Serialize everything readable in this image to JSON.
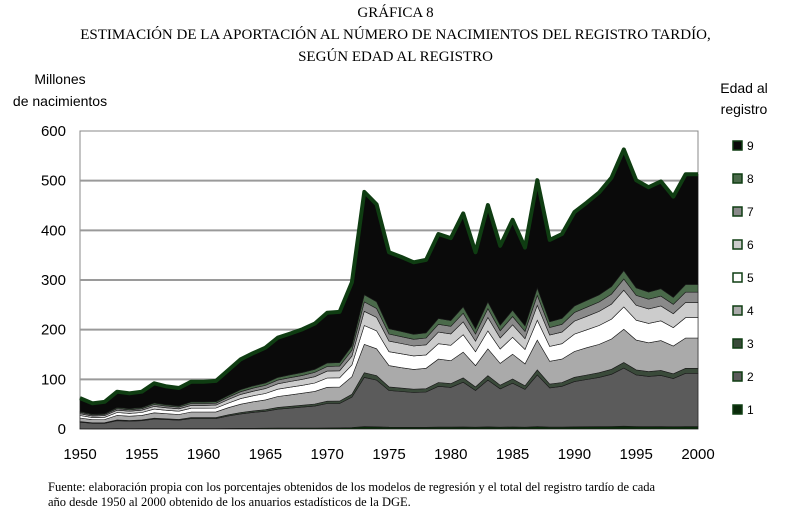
{
  "chart_data": {
    "type": "area",
    "stacked": true,
    "title": "GRÁFICA 8",
    "subtitle_line1": "ESTIMACIÓN DE LA APORTACIÓN AL NÚMERO DE NACIMIENTOS DEL REGISTRO TARDÍO,",
    "subtitle_line2": "SEGÚN EDAD AL REGISTRO",
    "ylabel_line1": "Millones",
    "ylabel_line2": "de nacimientos",
    "legend_title_line1": "Edad al",
    "legend_title_line2": "registro",
    "legend_placement": "right",
    "grid": true,
    "ylim": [
      0,
      600
    ],
    "xlim": [
      1950,
      2000
    ],
    "yticks": [
      "0",
      "100",
      "200",
      "300",
      "400",
      "500",
      "600"
    ],
    "xticks": [
      "1950",
      "1955",
      "1960",
      "1965",
      "1970",
      "1975",
      "1980",
      "1985",
      "1990",
      "1995",
      "2000"
    ],
    "x": [
      1950,
      1951,
      1952,
      1953,
      1954,
      1955,
      1956,
      1957,
      1958,
      1959,
      1960,
      1961,
      1962,
      1963,
      1964,
      1965,
      1966,
      1967,
      1968,
      1969,
      1970,
      1971,
      1972,
      1973,
      1974,
      1975,
      1976,
      1977,
      1978,
      1979,
      1980,
      1981,
      1982,
      1983,
      1984,
      1985,
      1986,
      1987,
      1988,
      1989,
      1990,
      1991,
      1992,
      1993,
      1994,
      1995,
      1996,
      1997,
      1998,
      1999,
      2000
    ],
    "totals": [
      62,
      52,
      55,
      75,
      72,
      75,
      92,
      85,
      82,
      95,
      95,
      97,
      118,
      140,
      152,
      163,
      183,
      192,
      200,
      212,
      233,
      235,
      295,
      477,
      452,
      355,
      345,
      335,
      340,
      392,
      383,
      432,
      355,
      450,
      368,
      420,
      365,
      500,
      380,
      392,
      435,
      455,
      475,
      505,
      562,
      500,
      487,
      497,
      468,
      512,
      512
    ],
    "series": [
      {
        "name": "1",
        "color": "#0a2a0a",
        "values": [
          0.6,
          0.5,
          0.5,
          0.8,
          0.7,
          0.8,
          0.9,
          0.9,
          0.8,
          1.0,
          1.0,
          1.0,
          1.2,
          1.4,
          1.5,
          1.6,
          1.8,
          1.9,
          2.0,
          2.1,
          2.3,
          2.4,
          3.0,
          4.8,
          4.5,
          3.6,
          3.5,
          3.4,
          3.4,
          3.9,
          3.8,
          4.3,
          3.6,
          4.5,
          3.7,
          4.2,
          3.7,
          5.0,
          3.8,
          3.9,
          4.4,
          4.6,
          4.8,
          5.1,
          5.6,
          5.0,
          4.9,
          5.0,
          4.7,
          5.1,
          5.1
        ]
      },
      {
        "name": "2",
        "color": "#5b5b5b",
        "values": [
          13,
          11,
          11,
          16,
          15,
          16,
          19,
          18,
          17,
          20,
          20,
          20,
          25,
          29,
          32,
          34,
          38,
          40,
          42,
          44,
          49,
          49,
          61,
          99,
          94,
          74,
          72,
          70,
          71,
          82,
          80,
          90,
          74,
          94,
          77,
          88,
          76,
          104,
          79,
          82,
          91,
          95,
          99,
          105,
          117,
          104,
          101,
          103,
          97,
          107,
          107
        ]
      },
      {
        "name": "3",
        "color": "#3a4a3a",
        "values": [
          1.2,
          1.0,
          1.1,
          1.5,
          1.4,
          1.5,
          1.8,
          1.7,
          1.6,
          1.9,
          1.9,
          1.9,
          2.4,
          2.8,
          3.0,
          3.3,
          3.7,
          3.8,
          4.0,
          4.2,
          4.7,
          4.7,
          5.9,
          9.5,
          9.0,
          7.1,
          6.9,
          6.7,
          6.8,
          7.8,
          7.7,
          8.6,
          7.1,
          9.0,
          7.4,
          8.4,
          7.3,
          10.0,
          7.6,
          7.8,
          8.7,
          9.1,
          9.5,
          10.1,
          11.2,
          10.0,
          9.7,
          9.9,
          9.4,
          10.2,
          10.2
        ]
      },
      {
        "name": "4",
        "color": "#aaaaaa",
        "values": [
          7.4,
          6.2,
          6.6,
          9.0,
          8.6,
          9.0,
          11.0,
          10.2,
          9.8,
          11.4,
          11.4,
          11.6,
          14.2,
          16.8,
          18.2,
          19.6,
          22.0,
          23.0,
          24.0,
          25.4,
          28.0,
          28.2,
          35.4,
          57,
          54,
          43,
          41,
          40,
          41,
          47,
          46,
          52,
          43,
          54,
          44,
          50,
          44,
          60,
          46,
          47,
          52,
          55,
          57,
          61,
          67,
          60,
          58,
          60,
          56,
          61,
          61
        ]
      },
      {
        "name": "5",
        "color": "#ffffff",
        "values": [
          5.0,
          4.2,
          4.4,
          6.0,
          5.8,
          6.0,
          7.4,
          6.8,
          6.6,
          7.6,
          7.6,
          7.8,
          9.4,
          11.2,
          12.2,
          13.0,
          14.6,
          15.4,
          16.0,
          17.0,
          18.6,
          18.8,
          23.6,
          38,
          36,
          28,
          28,
          27,
          27,
          31,
          31,
          35,
          28,
          36,
          29,
          34,
          29,
          40,
          30,
          31,
          35,
          36,
          38,
          40,
          45,
          40,
          39,
          40,
          37,
          41,
          41
        ]
      },
      {
        "name": "6",
        "color": "#cccccc",
        "values": [
          3.7,
          3.1,
          3.3,
          4.5,
          4.3,
          4.5,
          5.5,
          5.1,
          4.9,
          5.7,
          5.7,
          5.8,
          7.1,
          8.4,
          9.1,
          9.8,
          11.0,
          11.5,
          12.0,
          12.7,
          14.0,
          14.1,
          17.7,
          28.6,
          27.1,
          21.3,
          20.7,
          20.1,
          20.4,
          23.5,
          23.0,
          25.9,
          21.3,
          27.0,
          22.1,
          25.2,
          21.9,
          30.0,
          22.8,
          23.5,
          26.1,
          27.3,
          28.5,
          30.3,
          33.7,
          30.0,
          29.2,
          29.8,
          28.1,
          30.7,
          30.7
        ]
      },
      {
        "name": "7",
        "color": "#8a8a8a",
        "values": [
          2.5,
          2.1,
          2.2,
          3.0,
          2.9,
          3.0,
          3.7,
          3.4,
          3.3,
          3.8,
          3.8,
          3.9,
          4.7,
          5.6,
          6.1,
          6.5,
          7.3,
          7.7,
          8.0,
          8.5,
          9.3,
          9.4,
          11.8,
          19.1,
          18.1,
          14.2,
          13.8,
          13.4,
          13.6,
          15.7,
          15.3,
          17.3,
          14.2,
          18.0,
          14.7,
          16.8,
          14.6,
          20.0,
          15.2,
          15.7,
          17.4,
          18.2,
          19.0,
          20.2,
          22.5,
          20.0,
          19.5,
          19.9,
          18.7,
          20.5,
          20.5
        ]
      },
      {
        "name": "8",
        "color": "#4a6a4a",
        "values": [
          1.9,
          1.6,
          1.7,
          2.3,
          2.2,
          2.3,
          2.8,
          2.6,
          2.5,
          2.9,
          2.9,
          2.9,
          3.5,
          4.2,
          4.6,
          4.9,
          5.5,
          5.8,
          6.0,
          6.4,
          7.0,
          7.1,
          8.9,
          14.3,
          13.6,
          10.7,
          10.4,
          10.1,
          10.2,
          11.8,
          11.5,
          13.0,
          10.7,
          13.5,
          11.0,
          12.6,
          11.0,
          15.0,
          11.4,
          11.8,
          13.1,
          13.7,
          14.3,
          15.2,
          16.9,
          15.0,
          14.6,
          14.9,
          14.0,
          15.4,
          15.4
        ]
      },
      {
        "name": "9",
        "color": "#0a0a0a",
        "values": [
          27,
          22,
          24,
          32,
          31,
          32,
          40,
          37,
          36,
          41,
          41,
          42,
          51,
          61,
          66,
          71,
          80,
          83,
          87,
          92,
          101,
          102,
          128,
          207,
          196,
          154,
          150,
          145,
          147,
          170,
          166,
          188,
          154,
          195,
          160,
          182,
          158,
          217,
          165,
          170,
          189,
          197,
          206,
          219,
          244,
          217,
          211,
          216,
          203,
          222,
          222
        ]
      }
    ],
    "legend_labels": [
      "9",
      "8",
      "7",
      "6",
      "5",
      "4",
      "3",
      "2",
      "1"
    ],
    "source_line1": "Fuente: elaboración propia con los porcentajes obtenidos de los modelos de regresión y el total del registro tardío de cada",
    "source_line2": "año desde 1950 al 2000 obtenido de los anuarios estadísticos de la DGE."
  }
}
